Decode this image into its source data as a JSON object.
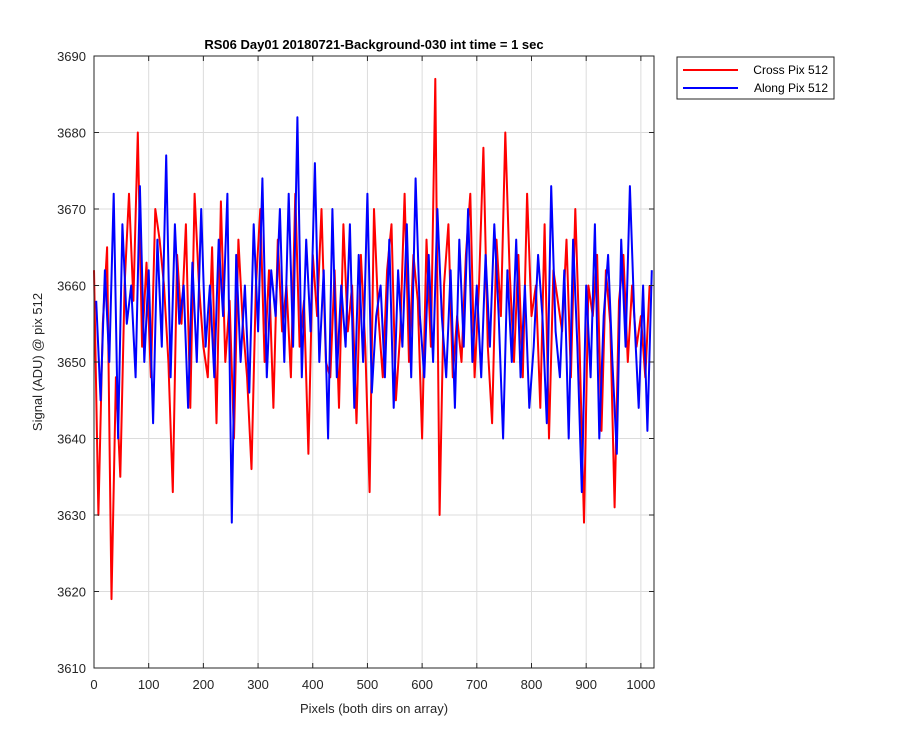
{
  "chart_data": {
    "type": "line",
    "title": "RS06 Day01 20180721-Background-030 int time = 1 sec",
    "xlabel": "Pixels (both dirs on array)",
    "ylabel": "Signal (ADU) @ pix 512",
    "xlim": [
      0,
      1024
    ],
    "ylim": [
      3610,
      3690
    ],
    "xticks": [
      0,
      100,
      200,
      300,
      400,
      500,
      600,
      700,
      800,
      900,
      1000
    ],
    "yticks": [
      3610,
      3620,
      3630,
      3640,
      3650,
      3660,
      3670,
      3680,
      3690
    ],
    "grid": true,
    "legend_position": "outside-top-right",
    "series": [
      {
        "name": "Cross Pix 512",
        "color": "#ff0000",
        "x_start": 0,
        "x_step": 8,
        "values": [
          3662,
          3630,
          3655,
          3665,
          3619,
          3648,
          3635,
          3660,
          3672,
          3658,
          3680,
          3652,
          3663,
          3648,
          3670,
          3666,
          3660,
          3650,
          3633,
          3664,
          3655,
          3668,
          3644,
          3672,
          3660,
          3652,
          3648,
          3665,
          3642,
          3671,
          3650,
          3658,
          3640,
          3666,
          3655,
          3648,
          3636,
          3660,
          3670,
          3650,
          3662,
          3644,
          3666,
          3654,
          3660,
          3648,
          3672,
          3652,
          3658,
          3638,
          3664,
          3656,
          3670,
          3650,
          3648,
          3662,
          3644,
          3668,
          3654,
          3660,
          3642,
          3664,
          3652,
          3633,
          3670,
          3656,
          3648,
          3662,
          3668,
          3645,
          3654,
          3672,
          3650,
          3664,
          3658,
          3640,
          3666,
          3652,
          3687,
          3630,
          3660,
          3668,
          3648,
          3656,
          3650,
          3664,
          3672,
          3648,
          3660,
          3678,
          3652,
          3642,
          3666,
          3656,
          3680,
          3662,
          3650,
          3664,
          3648,
          3672,
          3656,
          3660,
          3644,
          3668,
          3640,
          3662,
          3658,
          3654,
          3666,
          3648,
          3670,
          3652,
          3629,
          3660,
          3656,
          3664,
          3641,
          3662,
          3655,
          3631,
          3658,
          3664,
          3650,
          3660,
          3652,
          3656,
          3648,
          3660
        ]
      },
      {
        "name": "Along Pix 512",
        "color": "#0000ff",
        "x_start": 4,
        "x_step": 8,
        "values": [
          3658,
          3645,
          3662,
          3650,
          3672,
          3640,
          3668,
          3655,
          3660,
          3648,
          3673,
          3650,
          3662,
          3642,
          3666,
          3652,
          3677,
          3648,
          3668,
          3655,
          3660,
          3644,
          3663,
          3650,
          3670,
          3652,
          3660,
          3648,
          3666,
          3656,
          3672,
          3629,
          3664,
          3650,
          3660,
          3646,
          3668,
          3654,
          3674,
          3648,
          3662,
          3656,
          3670,
          3650,
          3672,
          3652,
          3682,
          3648,
          3666,
          3654,
          3676,
          3650,
          3662,
          3640,
          3670,
          3648,
          3660,
          3652,
          3668,
          3644,
          3664,
          3650,
          3672,
          3646,
          3656,
          3660,
          3648,
          3666,
          3644,
          3662,
          3652,
          3668,
          3648,
          3674,
          3656,
          3648,
          3664,
          3650,
          3670,
          3656,
          3648,
          3662,
          3644,
          3666,
          3652,
          3670,
          3650,
          3660,
          3648,
          3664,
          3652,
          3668,
          3656,
          3640,
          3662,
          3650,
          3666,
          3648,
          3660,
          3644,
          3652,
          3664,
          3656,
          3642,
          3673,
          3654,
          3648,
          3662,
          3640,
          3666,
          3652,
          3633,
          3660,
          3648,
          3668,
          3640,
          3656,
          3664,
          3650,
          3638,
          3666,
          3652,
          3673,
          3656,
          3644,
          3660,
          3641,
          3662
        ]
      }
    ]
  }
}
